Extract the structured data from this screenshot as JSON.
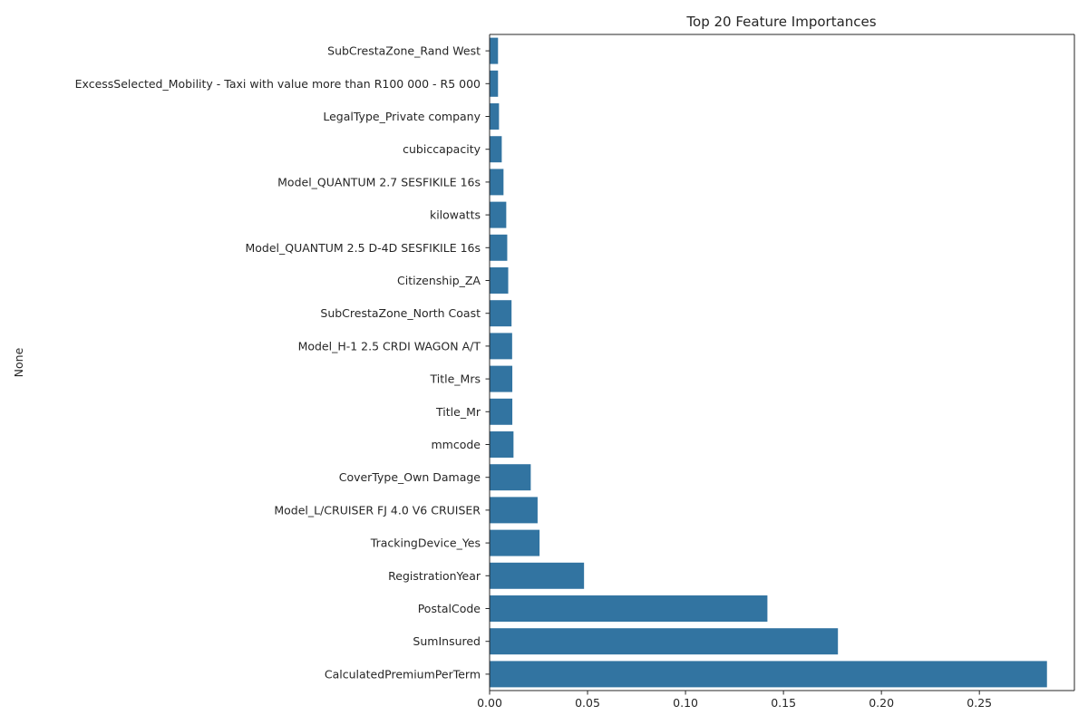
{
  "chart_data": {
    "type": "bar",
    "orientation": "horizontal",
    "title": "Top 20 Feature Importances",
    "xlabel": "",
    "ylabel": "None",
    "xlim": [
      0,
      0.2985
    ],
    "xticks": [
      0.0,
      0.05,
      0.1,
      0.15,
      0.2,
      0.25
    ],
    "xtick_labels": [
      "0.00",
      "0.05",
      "0.10",
      "0.15",
      "0.20",
      "0.25"
    ],
    "grid": false,
    "bar_color": "#3274a1",
    "categories": [
      "SubCrestaZone_Rand West",
      "ExcessSelected_Mobility - Taxi with value more than R100 000 - R5 000",
      "LegalType_Private company",
      "cubiccapacity",
      "Model_QUANTUM 2.7 SESFIKILE 16s",
      "kilowatts",
      "Model_QUANTUM 2.5 D-4D SESFIKILE 16s",
      "Citizenship_ZA",
      "SubCrestaZone_North Coast",
      "Model_H-1 2.5 CRDI WAGON A/T",
      "Title_Mrs",
      "Title_Mr",
      "mmcode",
      "CoverType_Own Damage",
      "Model_L/CRUISER FJ 4.0 V6 CRUISER",
      "TrackingDevice_Yes",
      "RegistrationYear",
      "PostalCode",
      "SumInsured",
      "CalculatedPremiumPerTerm"
    ],
    "values": [
      0.0043,
      0.0043,
      0.0048,
      0.0062,
      0.0071,
      0.0085,
      0.009,
      0.0095,
      0.0112,
      0.0115,
      0.0116,
      0.0116,
      0.0122,
      0.021,
      0.0245,
      0.0255,
      0.0482,
      0.1418,
      0.1778,
      0.2845
    ]
  }
}
